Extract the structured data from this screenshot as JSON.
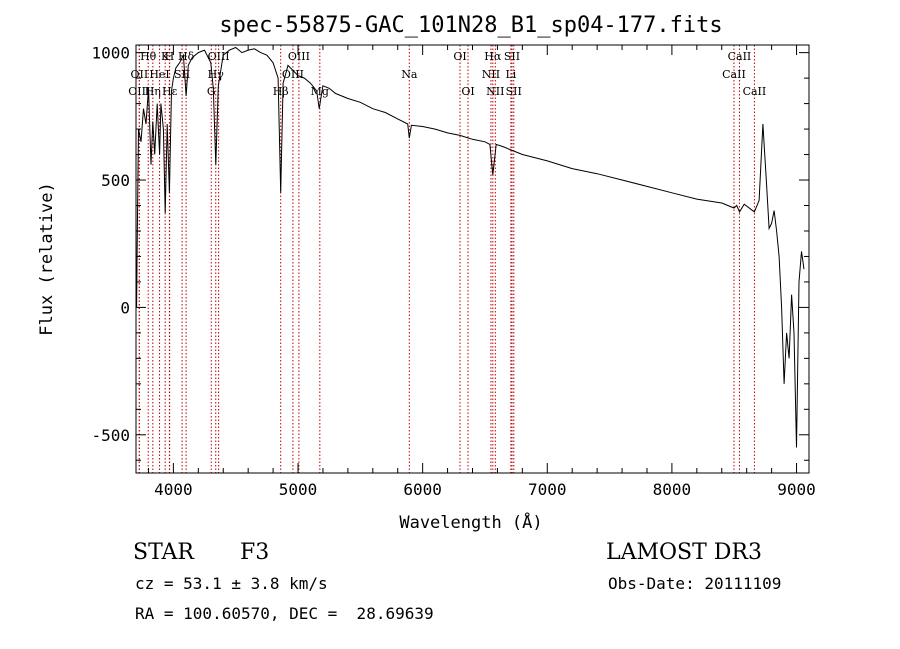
{
  "chart_data": {
    "type": "line",
    "title": "spec-55875-GAC_101N28_B1_sp04-177.fits",
    "xlabel": "Wavelength (Å)",
    "ylabel": "Flux (relative)",
    "xlim": [
      3700,
      9100
    ],
    "ylim": [
      -650,
      1030
    ],
    "xticks": [
      4000,
      5000,
      6000,
      7000,
      8000,
      9000
    ],
    "yticks": [
      -500,
      0,
      500,
      1000
    ],
    "series": [
      {
        "name": "spectrum",
        "x": [
          3700,
          3705,
          3710,
          3715,
          3720,
          3740,
          3760,
          3780,
          3800,
          3820,
          3835,
          3850,
          3870,
          3889,
          3900,
          3920,
          3934,
          3950,
          3968,
          3985,
          4000,
          4020,
          4050,
          4080,
          4102,
          4120,
          4150,
          4200,
          4250,
          4300,
          4320,
          4340,
          4360,
          4400,
          4450,
          4500,
          4550,
          4600,
          4650,
          4700,
          4750,
          4800,
          4840,
          4861,
          4880,
          4920,
          4960,
          5000,
          5050,
          5100,
          5150,
          5170,
          5200,
          5250,
          5300,
          5400,
          5500,
          5600,
          5700,
          5800,
          5880,
          5893,
          5910,
          6000,
          6100,
          6200,
          6300,
          6400,
          6500,
          6540,
          6563,
          6590,
          6650,
          6700,
          6800,
          7000,
          7200,
          7400,
          7600,
          7800,
          8000,
          8200,
          8400,
          8498,
          8520,
          8542,
          8580,
          8662,
          8700,
          8730,
          8760,
          8780,
          8800,
          8820,
          8840,
          8860,
          8880,
          8900,
          8920,
          8940,
          8960,
          8980,
          9000,
          9020,
          9040,
          9060
        ],
        "y": [
          150,
          0,
          250,
          500,
          700,
          650,
          780,
          720,
          860,
          560,
          730,
          600,
          800,
          600,
          800,
          700,
          370,
          720,
          450,
          850,
          900,
          940,
          960,
          990,
          830,
          950,
          980,
          1000,
          1010,
          960,
          860,
          560,
          870,
          990,
          1010,
          1020,
          1000,
          1010,
          1015,
          1000,
          990,
          960,
          900,
          450,
          880,
          950,
          930,
          910,
          900,
          880,
          850,
          780,
          870,
          860,
          840,
          820,
          805,
          780,
          765,
          740,
          720,
          665,
          715,
          710,
          700,
          685,
          675,
          660,
          650,
          640,
          520,
          640,
          630,
          620,
          600,
          575,
          545,
          525,
          500,
          475,
          450,
          425,
          410,
          390,
          400,
          375,
          405,
          375,
          420,
          720,
          480,
          310,
          330,
          380,
          300,
          200,
          0,
          -300,
          -100,
          -200,
          50,
          -100,
          -550,
          100,
          220,
          150
        ]
      }
    ],
    "spectral_lines": [
      {
        "label": "Hθ",
        "x": 3798,
        "row": 1
      },
      {
        "label": "OII",
        "x": 3727,
        "row": 2
      },
      {
        "label": "OIII",
        "x": 3726,
        "row": 3
      },
      {
        "label": "Hη",
        "x": 3835,
        "row": 3
      },
      {
        "label": "K",
        "x": 3934,
        "row": 1
      },
      {
        "label": "HeI",
        "x": 3889,
        "row": 2
      },
      {
        "label": "H",
        "x": 3968,
        "row": 1
      },
      {
        "label": "Hε",
        "x": 3970,
        "row": 3
      },
      {
        "label": "SII",
        "x": 4070,
        "row": 2
      },
      {
        "label": "Hδ",
        "x": 4102,
        "row": 1
      },
      {
        "label": "G",
        "x": 4304,
        "row": 3
      },
      {
        "label": "OIII",
        "x": 4363,
        "row": 1
      },
      {
        "label": "Hγ",
        "x": 4340,
        "row": 2
      },
      {
        "label": "Hβ",
        "x": 4861,
        "row": 3
      },
      {
        "label": "OIII",
        "x": 5007,
        "row": 1
      },
      {
        "label": "OIII",
        "x": 4959,
        "row": 2
      },
      {
        "label": "Mg",
        "x": 5175,
        "row": 3
      },
      {
        "label": "Na",
        "x": 5893,
        "row": 2
      },
      {
        "label": "OI",
        "x": 6300,
        "row": 1
      },
      {
        "label": "OI",
        "x": 6364,
        "row": 3
      },
      {
        "label": "Hα",
        "x": 6563,
        "row": 1
      },
      {
        "label": "NII",
        "x": 6548,
        "row": 2
      },
      {
        "label": "NII",
        "x": 6583,
        "row": 3
      },
      {
        "label": "SII",
        "x": 6717,
        "row": 1
      },
      {
        "label": "Li",
        "x": 6708,
        "row": 2
      },
      {
        "label": "SII",
        "x": 6731,
        "row": 3
      },
      {
        "label": "CaII",
        "x": 8542,
        "row": 1
      },
      {
        "label": "CaII",
        "x": 8498,
        "row": 2
      },
      {
        "label": "CaII",
        "x": 8662,
        "row": 3
      }
    ]
  },
  "info": {
    "object_class": "STAR",
    "subclass": "F3",
    "survey": "LAMOST DR3",
    "cz_line": "cz = 53.1 ± 3.8 km/s",
    "obs_date_line": "Obs-Date: 20111109",
    "coords_line": "RA = 100.60570, DEC =  28.69639"
  },
  "colors": {
    "spectrum": "#000000",
    "line_marker": "#c00000",
    "axes": "#000000"
  }
}
